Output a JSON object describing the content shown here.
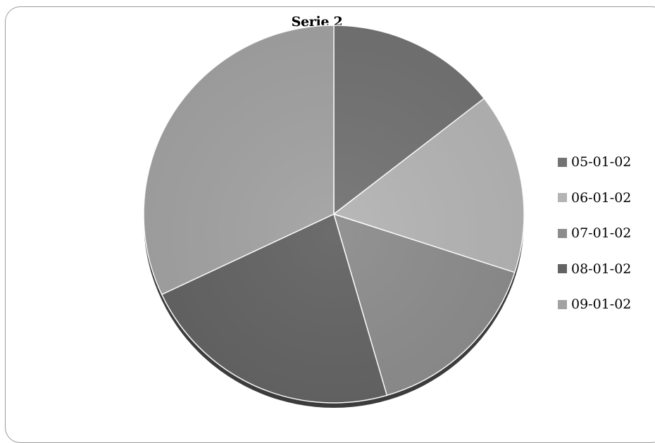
{
  "chart_data": {
    "type": "pie",
    "title": "Serie 2",
    "legend_position": "right",
    "slices": [
      {
        "label": "05-01-02",
        "value": 14.5,
        "color": "#737373"
      },
      {
        "label": "06-01-02",
        "value": 15.5,
        "color": "#b4b4b4"
      },
      {
        "label": "07-01-02",
        "value": 15.5,
        "color": "#8c8c8c"
      },
      {
        "label": "08-01-02",
        "value": 22.5,
        "color": "#636363"
      },
      {
        "label": "09-01-02",
        "value": 32.0,
        "color": "#a2a2a2"
      }
    ]
  }
}
